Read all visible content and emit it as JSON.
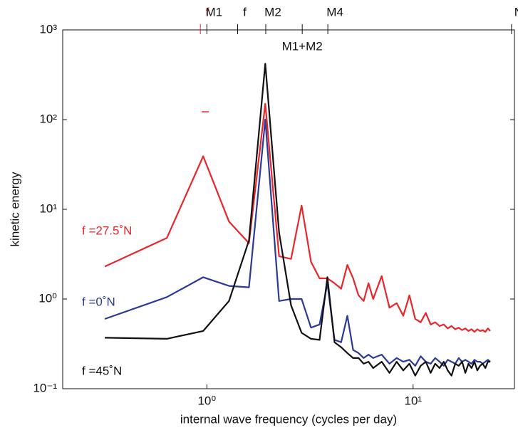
{
  "chart_data": {
    "type": "line",
    "xlabel": "internal  wave frequency (cycles per day)",
    "ylabel": "kinetic energy",
    "xscale": "log",
    "yscale": "log",
    "xlim": [
      0.2,
      31
    ],
    "ylim": [
      0.1,
      1000
    ],
    "xticks": [
      {
        "value": 1,
        "label": "10⁰"
      },
      {
        "value": 10,
        "label": "10¹"
      }
    ],
    "yticks": [
      {
        "value": 0.1,
        "label": "10⁻¹"
      },
      {
        "value": 1,
        "label": "10⁰"
      },
      {
        "value": 10,
        "label": "10¹"
      },
      {
        "value": 100,
        "label": "10²"
      },
      {
        "value": 1000,
        "label": "10³"
      }
    ],
    "top_markers": [
      {
        "label": "f",
        "value": 0.93,
        "color": "#e8262b"
      },
      {
        "label": "M1",
        "value": 1.0
      },
      {
        "label": "f",
        "value": 1.41
      },
      {
        "label": "M2",
        "value": 1.93
      },
      {
        "label": "M1+M2",
        "value": 2.9,
        "label_position": "inside"
      },
      {
        "label": "M4",
        "value": 3.86
      },
      {
        "label": "N",
        "value": 30
      }
    ],
    "x": [
      0.32,
      0.64,
      0.96,
      1.28,
      1.6,
      1.92,
      2.24,
      2.56,
      2.88,
      3.2,
      3.52,
      3.84,
      4.16,
      4.48,
      4.8,
      5.12,
      5.44,
      5.76,
      6.08,
      6.4,
      7.04,
      7.68,
      8.32,
      8.96,
      9.6,
      10.24,
      10.88,
      11.52,
      12.16,
      12.8,
      13.44,
      14.08,
      14.72,
      15.36,
      16,
      16.64,
      17.28,
      17.92,
      18.56,
      19.2,
      19.84,
      20.48,
      21.12,
      21.76,
      22.4,
      23.04,
      23.68
    ],
    "series": [
      {
        "name": "f =27.5˚N",
        "color": "#e8262b",
        "values": [
          2.3,
          4.8,
          39,
          7.3,
          4.2,
          150,
          3.0,
          2.8,
          11,
          2.6,
          1.7,
          1.7,
          1.5,
          1.3,
          2.4,
          1.7,
          1.1,
          0.95,
          1.5,
          1.0,
          1.8,
          0.8,
          0.9,
          0.65,
          1.1,
          0.6,
          0.55,
          0.7,
          0.52,
          0.55,
          0.5,
          0.52,
          0.47,
          0.5,
          0.46,
          0.48,
          0.45,
          0.47,
          0.44,
          0.46,
          0.43,
          0.46,
          0.44,
          0.45,
          0.43,
          0.47,
          0.44
        ]
      },
      {
        "name": "f =0˚N",
        "color": "#2b3a96",
        "values": [
          0.6,
          1.05,
          1.75,
          1.4,
          1.35,
          100,
          0.95,
          1.0,
          1.0,
          0.48,
          0.52,
          1.5,
          0.35,
          0.33,
          0.65,
          0.27,
          0.25,
          0.22,
          0.24,
          0.22,
          0.24,
          0.19,
          0.22,
          0.2,
          0.21,
          0.18,
          0.23,
          0.2,
          0.19,
          0.22,
          0.2,
          0.18,
          0.21,
          0.2,
          0.19,
          0.22,
          0.2,
          0.21,
          0.2,
          0.19,
          0.21,
          0.2,
          0.2,
          0.19,
          0.2,
          0.21,
          0.2
        ]
      },
      {
        "name": "f =45˚N",
        "color": "#111111",
        "values": [
          0.37,
          0.36,
          0.44,
          0.95,
          4.5,
          420,
          5.5,
          0.85,
          0.42,
          0.36,
          0.35,
          1.75,
          0.33,
          0.29,
          0.25,
          0.22,
          0.22,
          0.19,
          0.2,
          0.17,
          0.2,
          0.15,
          0.2,
          0.16,
          0.19,
          0.14,
          0.18,
          0.2,
          0.15,
          0.19,
          0.17,
          0.2,
          0.16,
          0.14,
          0.19,
          0.18,
          0.2,
          0.15,
          0.19,
          0.17,
          0.2,
          0.16,
          0.18,
          0.19,
          0.17,
          0.2,
          0.2
        ]
      }
    ]
  }
}
